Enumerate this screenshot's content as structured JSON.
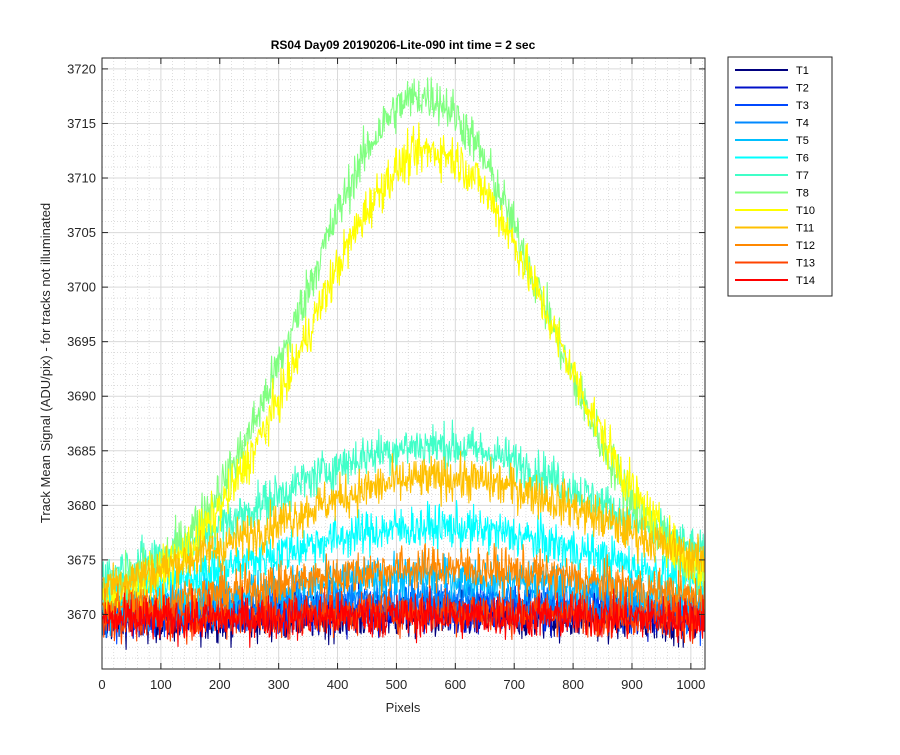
{
  "chart_data": {
    "type": "line",
    "title": "RS04 Day09 20190206-Lite-090 int time = 2 sec",
    "xlabel": "Pixels",
    "ylabel": "Track Mean Signal (ADU/pix) - for tracks not illuminated",
    "xlim": [
      0,
      1024
    ],
    "ylim": [
      3665,
      3721
    ],
    "xticks": [
      0,
      100,
      200,
      300,
      400,
      500,
      600,
      700,
      800,
      900,
      1000
    ],
    "yticks": [
      3670,
      3675,
      3680,
      3685,
      3690,
      3695,
      3700,
      3705,
      3710,
      3715,
      3720
    ],
    "grid": true,
    "minor_grid": true,
    "legend_placement": "outside-right-top",
    "series": [
      {
        "name": "T1",
        "color": "#00007f",
        "baseline": 3669.3,
        "peak": 0.5,
        "center": 560,
        "width": 300,
        "noise": 1.8
      },
      {
        "name": "T2",
        "color": "#0010c8",
        "baseline": 3669.5,
        "peak": 0.8,
        "center": 560,
        "width": 300,
        "noise": 1.7
      },
      {
        "name": "T3",
        "color": "#0048ff",
        "baseline": 3669.6,
        "peak": 1.2,
        "center": 560,
        "width": 300,
        "noise": 1.7
      },
      {
        "name": "T4",
        "color": "#0088ff",
        "baseline": 3669.7,
        "peak": 2.0,
        "center": 560,
        "width": 300,
        "noise": 1.7
      },
      {
        "name": "T5",
        "color": "#00c0ff",
        "baseline": 3670.0,
        "peak": 3.5,
        "center": 560,
        "width": 300,
        "noise": 1.7
      },
      {
        "name": "T6",
        "color": "#00ffff",
        "baseline": 3670.5,
        "peak": 7.5,
        "center": 560,
        "width": 300,
        "noise": 1.8
      },
      {
        "name": "T7",
        "color": "#40ffc8",
        "baseline": 3671.0,
        "peak": 14.5,
        "center": 560,
        "width": 300,
        "noise": 1.8
      },
      {
        "name": "T8",
        "color": "#80ff80",
        "baseline": 3671.0,
        "peak": 46.5,
        "center": 545,
        "width": 200,
        "noise": 1.9
      },
      {
        "name": "T10",
        "color": "#ffff00",
        "baseline": 3670.0,
        "peak": 42.5,
        "center": 560,
        "width": 210,
        "noise": 1.9
      },
      {
        "name": "T11",
        "color": "#ffc000",
        "baseline": 3671.0,
        "peak": 11.5,
        "center": 580,
        "width": 300,
        "noise": 1.8
      },
      {
        "name": "T12",
        "color": "#ff8800",
        "baseline": 3670.0,
        "peak": 4.3,
        "center": 580,
        "width": 300,
        "noise": 1.8
      },
      {
        "name": "T13",
        "color": "#ff4400",
        "baseline": 3669.5,
        "peak": 0.8,
        "center": 580,
        "width": 300,
        "noise": 1.8
      },
      {
        "name": "T14",
        "color": "#ff0000",
        "baseline": 3669.4,
        "peak": 0.5,
        "center": 580,
        "width": 300,
        "noise": 1.8
      }
    ]
  }
}
